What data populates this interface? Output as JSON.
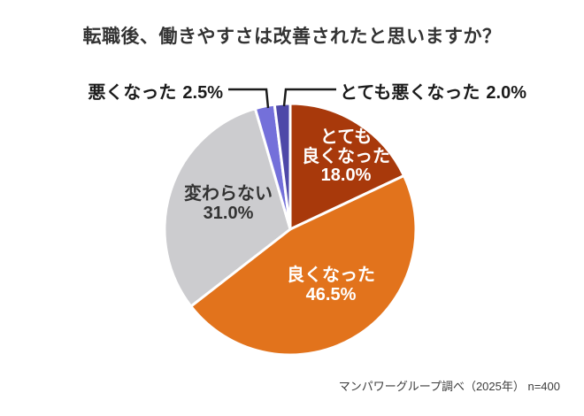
{
  "title": "転職後、働きやすさは改善されたと思いますか？",
  "source": "マンパワーグループ調べ（2025年） n=400",
  "chart_data": {
    "type": "pie",
    "title": "転職後、働きやすさは改善されたと思いますか？",
    "start_angle_deg": -90,
    "direction": "clockwise",
    "total": 100,
    "stroke_color": "#ffffff",
    "callout_line_color": "#1b1b1b",
    "segments": [
      {
        "label": "とても良くなった",
        "label_lines": [
          "とても",
          "良くなった"
        ],
        "value": 18.0,
        "display": "18.0%",
        "color": "#a8390b",
        "text_color": "#ffffff",
        "label_placement": "inside"
      },
      {
        "label": "良くなった",
        "value": 46.5,
        "display": "46.5%",
        "color": "#e2731c",
        "text_color": "#ffffff",
        "label_placement": "inside"
      },
      {
        "label": "変わらない",
        "value": 31.0,
        "display": "31.0%",
        "color": "#cccccf",
        "text_color": "#333333",
        "label_placement": "inside"
      },
      {
        "label": "悪くなった",
        "value": 2.5,
        "display": "2.5%",
        "color": "#7470da",
        "text_color": "#1b1b1b",
        "label_placement": "callout-left"
      },
      {
        "label": "とても悪くなった",
        "value": 2.0,
        "display": "2.0%",
        "color": "#4e48a8",
        "text_color": "#1b1b1b",
        "label_placement": "callout-right"
      }
    ]
  }
}
